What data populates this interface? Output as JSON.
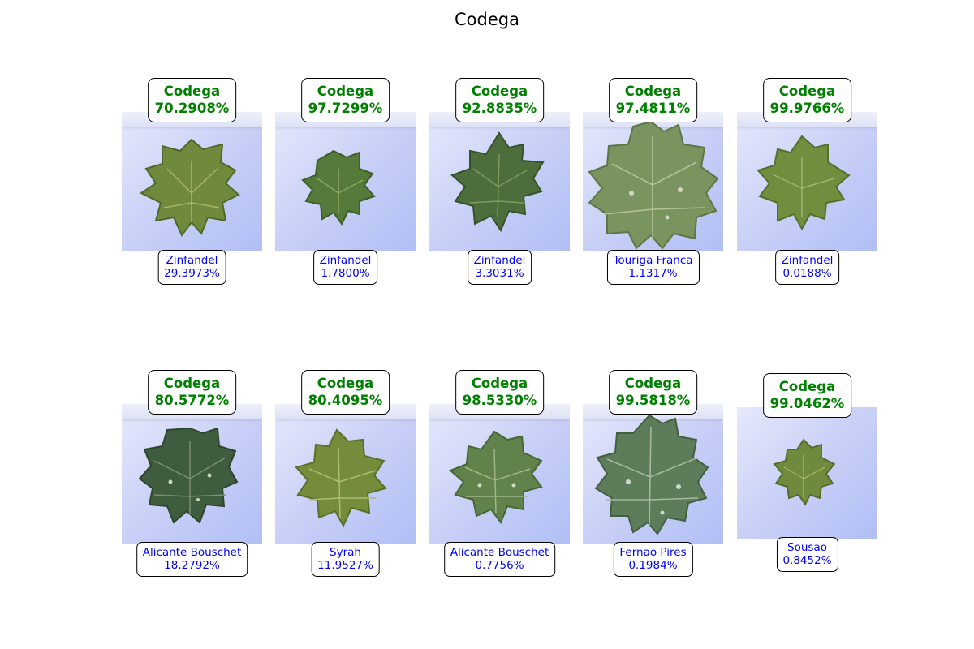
{
  "figure": {
    "title": "Codega"
  },
  "panels": [
    {
      "predicted": {
        "label": "Codega",
        "confidence": "70.2908%"
      },
      "alternative": {
        "label": "Zinfandel",
        "confidence": "29.3973%"
      }
    },
    {
      "predicted": {
        "label": "Codega",
        "confidence": "97.7299%"
      },
      "alternative": {
        "label": "Zinfandel",
        "confidence": "1.7800%"
      }
    },
    {
      "predicted": {
        "label": "Codega",
        "confidence": "92.8835%"
      },
      "alternative": {
        "label": "Zinfandel",
        "confidence": "3.3031%"
      }
    },
    {
      "predicted": {
        "label": "Codega",
        "confidence": "97.4811%"
      },
      "alternative": {
        "label": "Touriga Franca",
        "confidence": "1.1317%"
      }
    },
    {
      "predicted": {
        "label": "Codega",
        "confidence": "99.9766%"
      },
      "alternative": {
        "label": "Zinfandel",
        "confidence": "0.0188%"
      }
    },
    {
      "predicted": {
        "label": "Codega",
        "confidence": "80.5772%"
      },
      "alternative": {
        "label": "Alicante Bouschet",
        "confidence": "18.2792%"
      }
    },
    {
      "predicted": {
        "label": "Codega",
        "confidence": "80.4095%"
      },
      "alternative": {
        "label": "Syrah",
        "confidence": "11.9527%"
      }
    },
    {
      "predicted": {
        "label": "Codega",
        "confidence": "98.5330%"
      },
      "alternative": {
        "label": "Alicante Bouschet",
        "confidence": "0.7756%"
      }
    },
    {
      "predicted": {
        "label": "Codega",
        "confidence": "99.5818%"
      },
      "alternative": {
        "label": "Fernao Pires",
        "confidence": "0.1984%"
      }
    },
    {
      "predicted": {
        "label": "Codega",
        "confidence": "99.0462%"
      },
      "alternative": {
        "label": "Sousao",
        "confidence": "0.8452%"
      }
    }
  ],
  "colors": {
    "predicted_text": "#008000",
    "alternative_text": "#0000ff"
  }
}
